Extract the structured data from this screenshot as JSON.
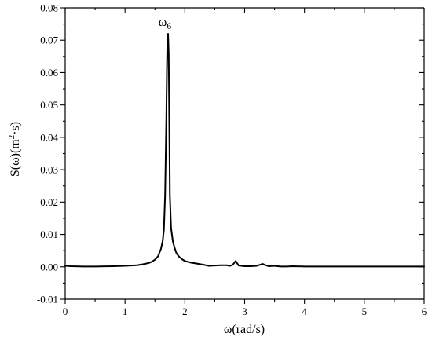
{
  "chart_data": {
    "type": "line",
    "title": "",
    "xlabel": "ω(rad/s)",
    "ylabel_main": "S(ω)(m",
    "ylabel_sup": "2",
    "ylabel_tail": "·s)",
    "xlim": [
      0,
      6
    ],
    "ylim": [
      -0.01,
      0.08
    ],
    "xticks": [
      0,
      1,
      2,
      3,
      4,
      5,
      6
    ],
    "xtick_labels": [
      "0",
      "1",
      "2",
      "3",
      "4",
      "5",
      "6"
    ],
    "yticks": [
      -0.01,
      0.0,
      0.01,
      0.02,
      0.03,
      0.04,
      0.05,
      0.06,
      0.07,
      0.08
    ],
    "ytick_labels": [
      "-0.01",
      "0.00",
      "0.01",
      "0.02",
      "0.03",
      "0.04",
      "0.05",
      "0.06",
      "0.07",
      "0.08"
    ],
    "grid": false,
    "annotations": [
      {
        "text": "ω",
        "sub": "6",
        "x": 1.72,
        "y": 0.072
      }
    ],
    "series": [
      {
        "x": [
          0,
          0.1,
          0.3,
          0.5,
          0.8,
          1.0,
          1.2,
          1.3,
          1.4,
          1.45,
          1.5,
          1.55,
          1.6,
          1.63,
          1.65,
          1.67,
          1.69,
          1.7,
          1.71,
          1.72,
          1.73,
          1.74,
          1.75,
          1.77,
          1.8,
          1.83,
          1.86,
          1.9,
          1.95,
          2.0,
          2.1,
          2.2,
          2.3,
          2.4,
          2.5,
          2.6,
          2.7,
          2.75,
          2.8,
          2.85,
          2.9,
          3.0,
          3.1,
          3.2,
          3.3,
          3.35,
          3.4,
          3.5,
          3.6,
          3.7,
          3.8,
          4.0,
          4.5,
          5.0,
          5.5,
          6.0
        ],
        "y": [
          0.0003,
          0.0002,
          0.0001,
          0.0001,
          0.0002,
          0.0003,
          0.0005,
          0.0008,
          0.0012,
          0.0016,
          0.0022,
          0.0032,
          0.0055,
          0.008,
          0.0115,
          0.022,
          0.045,
          0.06,
          0.071,
          0.072,
          0.066,
          0.045,
          0.022,
          0.012,
          0.0078,
          0.0058,
          0.0042,
          0.0032,
          0.0024,
          0.0018,
          0.0013,
          0.001,
          0.0007,
          0.0003,
          0.0004,
          0.0005,
          0.0005,
          0.0003,
          0.0006,
          0.0018,
          0.0004,
          0.0002,
          0.0002,
          0.0003,
          0.0009,
          0.0005,
          0.0002,
          0.0003,
          0.0001,
          0.0001,
          0.0002,
          0.0001,
          0.0001,
          0.0001,
          0.0001,
          0.0001
        ]
      }
    ]
  }
}
